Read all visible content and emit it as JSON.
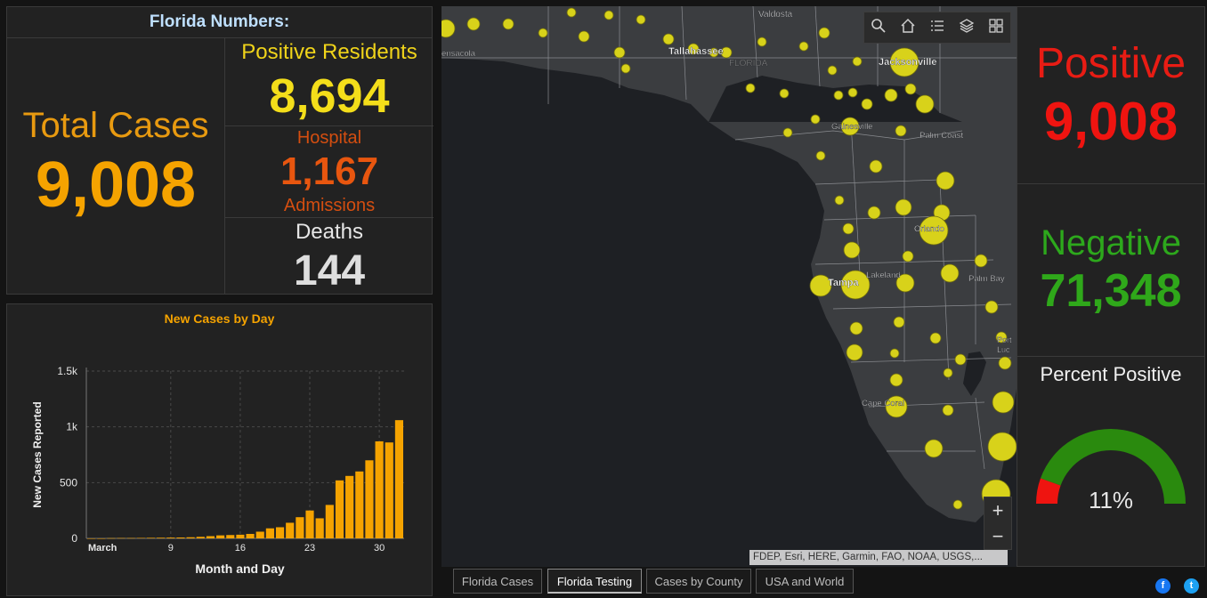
{
  "numbers": {
    "title": "Florida Numbers:",
    "total_cases_label": "Total Cases",
    "total_cases_value": "9,008",
    "positive_residents_label": "Positive Residents",
    "positive_residents_value": "8,694",
    "hospital_label": "Hospital",
    "hospital_value": "1,167",
    "admissions_label": "Admissions",
    "deaths_label": "Deaths",
    "deaths_value": "144"
  },
  "chart_data": {
    "type": "bar",
    "title": "New Cases by Day",
    "xlabel": "Month and Day",
    "ylabel": "New Cases Reported",
    "ylim": [
      0,
      1500
    ],
    "yticks": [
      {
        "value": 0,
        "label": "0"
      },
      {
        "value": 500,
        "label": "500"
      },
      {
        "value": 1000,
        "label": "1k"
      },
      {
        "value": 1500,
        "label": "1.5k"
      }
    ],
    "xticks": [
      {
        "index": 1,
        "label": "March"
      },
      {
        "index": 9,
        "label": "9"
      },
      {
        "index": 16,
        "label": "16"
      },
      {
        "index": 23,
        "label": "23"
      },
      {
        "index": 30,
        "label": "30"
      }
    ],
    "days": [
      1,
      2,
      3,
      4,
      5,
      6,
      7,
      8,
      9,
      10,
      11,
      12,
      13,
      14,
      15,
      16,
      17,
      18,
      19,
      20,
      21,
      22,
      23,
      24,
      25,
      26,
      27,
      28,
      29,
      30,
      31,
      32
    ],
    "values": [
      0,
      0,
      2,
      3,
      3,
      4,
      5,
      6,
      7,
      8,
      10,
      14,
      20,
      27,
      30,
      33,
      40,
      60,
      90,
      100,
      140,
      190,
      250,
      180,
      300,
      520,
      560,
      600,
      700,
      870,
      860,
      1060
    ],
    "grid": true,
    "color": "#f5a300"
  },
  "map": {
    "labels": {
      "valdosta": "Valdosta",
      "pensacola": "ensacola",
      "tallahassee": "Tallahassee",
      "florida": "FLORIDA",
      "jacksonville": "Jacksonville",
      "gainesville": "Gainesville",
      "palm_coast": "Palm Coast",
      "orlando": "Orlando",
      "lakeland": "Lakeland",
      "tampa": "Tampa",
      "palm_bay": "Palm Bay",
      "port_st_lucie": "Port",
      "port_st_lucie2": "Luc",
      "cape_coral": "Cape Coral"
    },
    "attribution": "FDEP, Esri, HERE, Garmin, FAO, NOAA, USGS,...",
    "zoom_in": "+",
    "zoom_out": "−",
    "tools": [
      "search-icon",
      "home-icon",
      "legend-icon",
      "layers-icon",
      "basemap-gallery-icon"
    ],
    "land_color": "#3b3d40",
    "water_color": "#1e2024",
    "bubble_color": "#d8d21a"
  },
  "testing": {
    "positive_label": "Positive",
    "positive_value": "9,008",
    "negative_label": "Negative",
    "negative_value": "71,348",
    "percent_label": "Percent Positive",
    "percent_value": "11%",
    "percent_fraction": 0.11,
    "positive_color": "#ef1410",
    "negative_color": "#2a8a0e"
  },
  "tabs": [
    {
      "label": "Florida Cases",
      "active": false
    },
    {
      "label": "Florida Testing",
      "active": true
    },
    {
      "label": "Cases by County",
      "active": false
    },
    {
      "label": "USA and World",
      "active": false
    }
  ],
  "social": {
    "facebook": "f",
    "twitter": "t"
  }
}
